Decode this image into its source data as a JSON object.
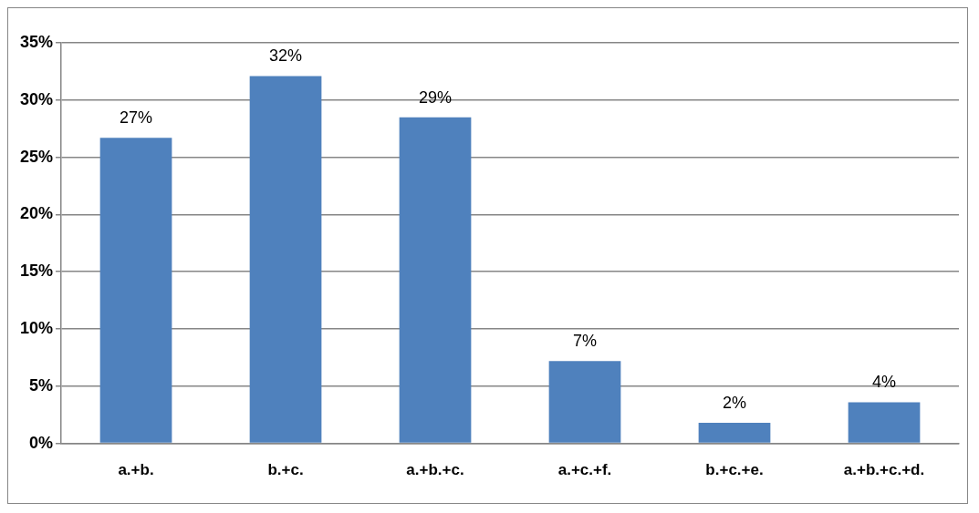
{
  "chart_data": {
    "type": "bar",
    "categories": [
      "a.+b.",
      "b.+c.",
      "a.+b.+c.",
      "a.+c.+f.",
      "b.+c.+e.",
      "a.+b.+c.+d."
    ],
    "values": [
      26.7,
      32.1,
      28.5,
      7.2,
      1.8,
      3.6
    ],
    "value_labels": [
      "27%",
      "32%",
      "29%",
      "7%",
      "2%",
      "4%"
    ],
    "color": "#4f81bd",
    "ylim": [
      0,
      35
    ],
    "yticks": [
      {
        "value": 0,
        "label": "0%"
      },
      {
        "value": 5,
        "label": "5%"
      },
      {
        "value": 10,
        "label": "10%"
      },
      {
        "value": 15,
        "label": "15%"
      },
      {
        "value": 20,
        "label": "20%"
      },
      {
        "value": 25,
        "label": "25%"
      },
      {
        "value": 30,
        "label": "30%"
      },
      {
        "value": 35,
        "label": "35%"
      }
    ],
    "grid": "y",
    "legend": false
  }
}
